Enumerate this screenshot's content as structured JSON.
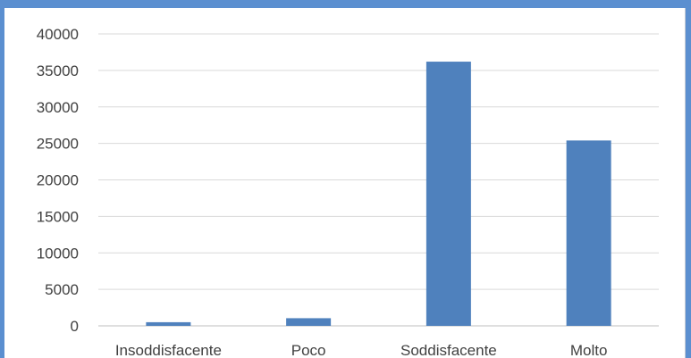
{
  "chart_data": {
    "type": "bar",
    "categories": [
      "Insoddisfacente",
      "Poco",
      "Soddisfacente",
      "Molto"
    ],
    "values": [
      500,
      1050,
      36200,
      25400
    ],
    "ylim": [
      0,
      40000
    ],
    "yticks": [
      "0",
      "5000",
      "10000",
      "15000",
      "20000",
      "25000",
      "30000",
      "35000",
      "40000"
    ],
    "grid": true,
    "legend": "none",
    "colors": {
      "bar": "#4f81bd",
      "grid": "#d9d9d9",
      "axis": "#bfbfbf",
      "text": "#404040",
      "frame": "#5b8fd0"
    }
  }
}
